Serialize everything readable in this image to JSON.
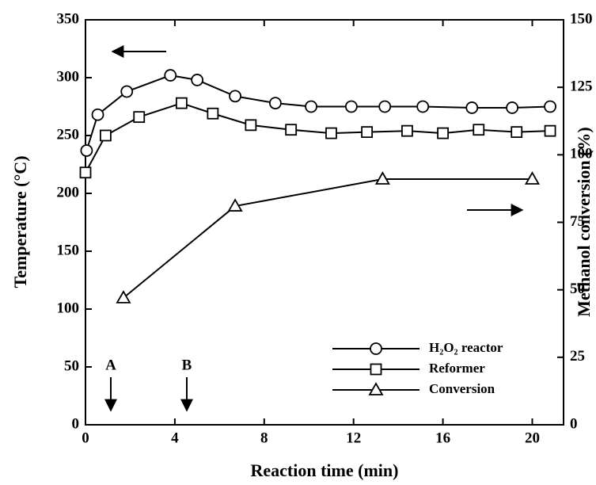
{
  "chart_data": {
    "type": "line",
    "x_label": "Reaction time (min)",
    "y_label": "Temperature (°C)",
    "y2_label": "Methanol conversion (%)",
    "xlim": [
      0,
      21.4
    ],
    "xticks": [
      0,
      4,
      8,
      12,
      16,
      20
    ],
    "ylim": [
      0,
      350
    ],
    "yticks": [
      0,
      50,
      100,
      150,
      200,
      250,
      300,
      350
    ],
    "y2lim": [
      0,
      150
    ],
    "y2ticks": [
      0,
      25,
      50,
      75,
      100,
      125,
      150
    ],
    "legend": "lower right",
    "annotations": [
      "A",
      "B"
    ],
    "series": [
      {
        "name": "H₂O₂ reactor",
        "marker": "circle",
        "color": "#000",
        "x": [
          0.05,
          0.55,
          1.85,
          3.8,
          5.0,
          6.7,
          8.5,
          10.1,
          11.9,
          13.4,
          15.1,
          17.3,
          19.1,
          20.8
        ],
        "values": [
          237,
          268,
          288,
          302,
          298,
          284,
          278,
          275,
          275,
          275,
          275,
          274,
          274,
          275
        ]
      },
      {
        "name": "Reformer",
        "marker": "square",
        "color": "#000",
        "x": [
          0,
          0.9,
          2.4,
          4.3,
          5.7,
          7.4,
          9.2,
          11.0,
          12.6,
          14.4,
          16.0,
          17.6,
          19.3,
          20.8
        ],
        "values": [
          218,
          250,
          266,
          278,
          269,
          259,
          255,
          252,
          253,
          254,
          252,
          255,
          253,
          254
        ]
      },
      {
        "name": "Conversion",
        "marker": "triangle",
        "color": "#000",
        "axis": "y2",
        "x": [
          1.7,
          6.7,
          13.3,
          20.0
        ],
        "values": [
          47,
          81,
          91,
          91
        ]
      }
    ]
  }
}
